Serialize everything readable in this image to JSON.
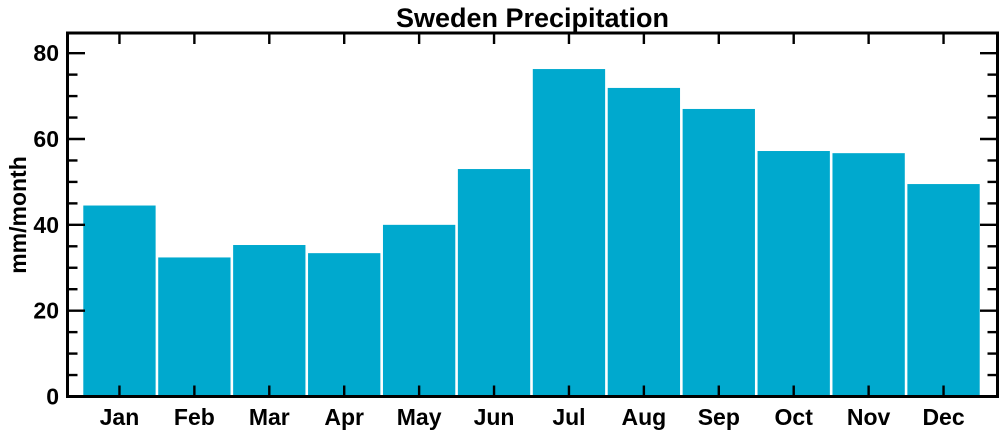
{
  "title": "Sweden Precipitation",
  "y_axis": {
    "label": "mm/month",
    "tick_labels": [
      "0",
      "20",
      "40",
      "60",
      "80"
    ]
  },
  "x_axis": {
    "tick_labels": [
      "Jan",
      "Feb",
      "Mar",
      "Apr",
      "May",
      "Jun",
      "Jul",
      "Aug",
      "Sep",
      "Oct",
      "Nov",
      "Dec"
    ]
  },
  "colors": {
    "bar": "#00a9ce",
    "bar_separator": "#ffffff",
    "axis": "#000000",
    "text": "#000000",
    "background": "#ffffff"
  },
  "chart_data": {
    "type": "bar",
    "title": "Sweden Precipitation",
    "xlabel": "",
    "ylabel": "mm/month",
    "categories": [
      "Jan",
      "Feb",
      "Mar",
      "Apr",
      "May",
      "Jun",
      "Jul",
      "Aug",
      "Sep",
      "Oct",
      "Nov",
      "Dec"
    ],
    "values": [
      44.5,
      32.4,
      35.3,
      33.4,
      40.0,
      53.0,
      76.3,
      71.9,
      67.0,
      57.2,
      56.7,
      49.5
    ],
    "ylim": [
      0,
      84.7
    ],
    "yticks_major": [
      0,
      20,
      40,
      60,
      80
    ],
    "ytick_minor_interval": 5,
    "grid": false,
    "legend": null,
    "bar_color": "#00a9ce",
    "layout_hints": "single series, bars nearly touching with thin white separators, inward ticks on all four spines, black frame"
  }
}
